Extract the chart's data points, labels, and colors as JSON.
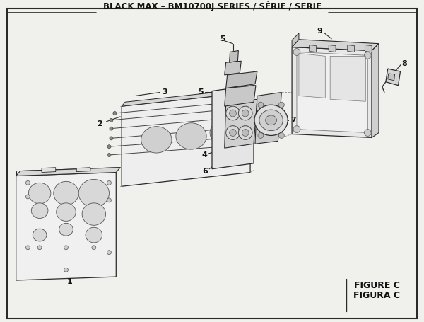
{
  "title": "BLACK MAX – BM10700J SERIES / SÉRIE / SERIE",
  "figure_label": "FIGURE C",
  "figura_label": "FIGURA C",
  "bg_color": "#f0f0ec",
  "border_color": "#1a1a1a",
  "line_color": "#2a2a2a",
  "text_color": "#111111",
  "title_fontsize": 8.5,
  "fig_label_fontsize": 9.5
}
